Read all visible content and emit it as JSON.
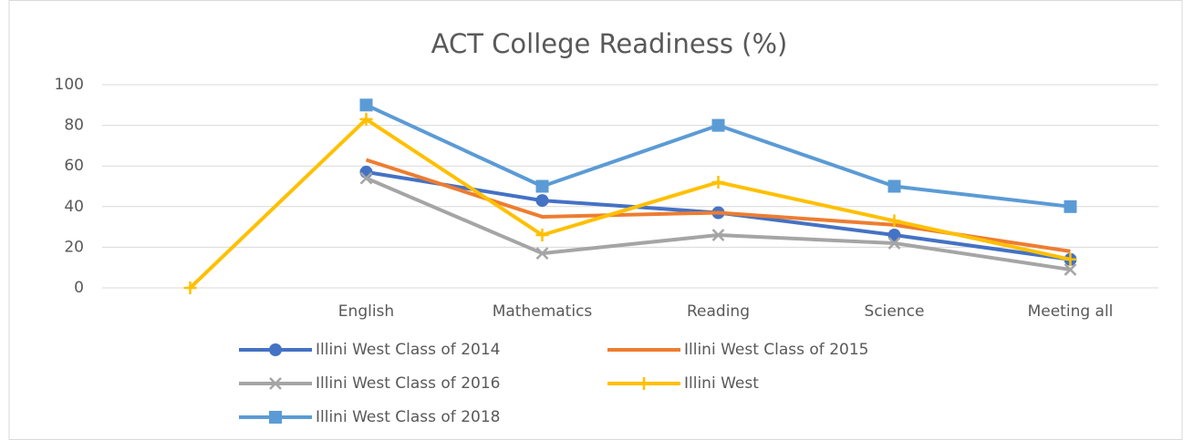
{
  "chart_data": {
    "type": "line",
    "title": "ACT College Readiness (%)",
    "categories": [
      null,
      "English",
      "Mathematics",
      "Reading",
      "Science",
      "Meeting all"
    ],
    "series": [
      {
        "name": "Illini West Class of 2014",
        "color": "#4472c4",
        "marker": "circle",
        "values": [
          null,
          57,
          43,
          37,
          26,
          14
        ]
      },
      {
        "name": "Illini West  Class of 2015",
        "color": "#ed7d31",
        "marker": "none",
        "values": [
          null,
          63,
          35,
          37,
          31,
          18
        ]
      },
      {
        "name": "Illini West Class of 2016",
        "color": "#a5a5a5",
        "marker": "x",
        "values": [
          null,
          54,
          17,
          26,
          22,
          9
        ]
      },
      {
        "name": "Illini West",
        "color": "#ffc000",
        "marker": "plus",
        "values": [
          0,
          83,
          26,
          52,
          33,
          14
        ]
      },
      {
        "name": "Illini West Class of 2018",
        "color": "#5b9bd5",
        "marker": "square",
        "values": [
          null,
          90,
          50,
          80,
          50,
          40
        ]
      }
    ],
    "ylim": [
      0,
      100
    ],
    "yticks": [
      0,
      20,
      40,
      60,
      80,
      100
    ],
    "grid": true,
    "legend": "bottom"
  }
}
